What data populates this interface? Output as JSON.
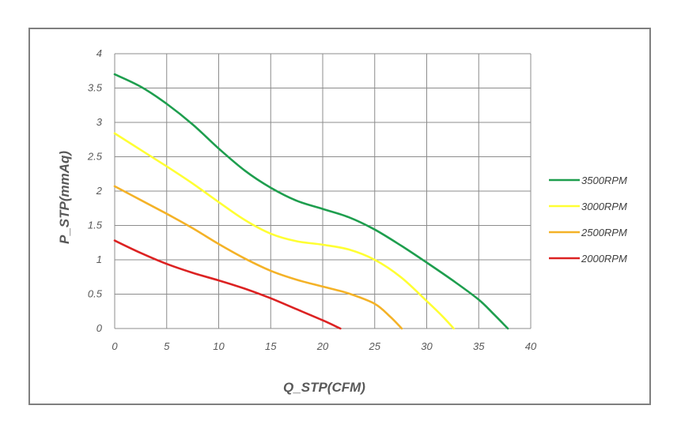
{
  "chart_data": {
    "type": "line",
    "title": "",
    "xlabel": "Q_STP(CFM)",
    "ylabel": "P_STP(mmAq)",
    "xlim": [
      0,
      40
    ],
    "ylim": [
      0,
      4
    ],
    "x_ticks": [
      "0",
      "5",
      "10",
      "15",
      "20",
      "25",
      "30",
      "35",
      "40"
    ],
    "y_ticks": [
      "0",
      "0.5",
      "1",
      "1.5",
      "2",
      "2.5",
      "3",
      "3.5",
      "4"
    ],
    "grid": true,
    "legend_position": "right",
    "series": [
      {
        "name": "3500RPM",
        "color": "#1e9e4e",
        "points": [
          [
            0,
            3.7
          ],
          [
            2.5,
            3.52
          ],
          [
            5,
            3.27
          ],
          [
            7.5,
            2.97
          ],
          [
            10,
            2.62
          ],
          [
            12.5,
            2.3
          ],
          [
            15,
            2.05
          ],
          [
            17.5,
            1.86
          ],
          [
            20,
            1.74
          ],
          [
            22.5,
            1.62
          ],
          [
            25,
            1.44
          ],
          [
            27.5,
            1.21
          ],
          [
            30,
            0.96
          ],
          [
            32.5,
            0.7
          ],
          [
            35,
            0.42
          ],
          [
            36.5,
            0.2
          ],
          [
            37.8,
            0.0
          ]
        ]
      },
      {
        "name": "3000RPM",
        "color": "#ffff33",
        "points": [
          [
            0,
            2.84
          ],
          [
            2.5,
            2.6
          ],
          [
            5,
            2.36
          ],
          [
            7.5,
            2.11
          ],
          [
            10,
            1.84
          ],
          [
            12.5,
            1.58
          ],
          [
            15,
            1.38
          ],
          [
            17.5,
            1.27
          ],
          [
            20,
            1.22
          ],
          [
            22.5,
            1.15
          ],
          [
            25,
            1.0
          ],
          [
            27.5,
            0.75
          ],
          [
            30,
            0.4
          ],
          [
            31.5,
            0.18
          ],
          [
            32.6,
            0.0
          ]
        ]
      },
      {
        "name": "2500RPM",
        "color": "#f4b227",
        "points": [
          [
            0,
            2.07
          ],
          [
            2.5,
            1.87
          ],
          [
            5,
            1.67
          ],
          [
            7.5,
            1.46
          ],
          [
            10,
            1.23
          ],
          [
            12.5,
            1.02
          ],
          [
            15,
            0.84
          ],
          [
            17.5,
            0.71
          ],
          [
            20,
            0.61
          ],
          [
            22.5,
            0.51
          ],
          [
            25,
            0.36
          ],
          [
            26.5,
            0.17
          ],
          [
            27.6,
            0.0
          ]
        ]
      },
      {
        "name": "2000RPM",
        "color": "#dc2222",
        "points": [
          [
            0,
            1.28
          ],
          [
            2.5,
            1.1
          ],
          [
            5,
            0.94
          ],
          [
            7.5,
            0.81
          ],
          [
            10,
            0.7
          ],
          [
            12.5,
            0.58
          ],
          [
            15,
            0.44
          ],
          [
            17.5,
            0.28
          ],
          [
            20,
            0.12
          ],
          [
            21.7,
            0.0
          ]
        ]
      }
    ]
  }
}
